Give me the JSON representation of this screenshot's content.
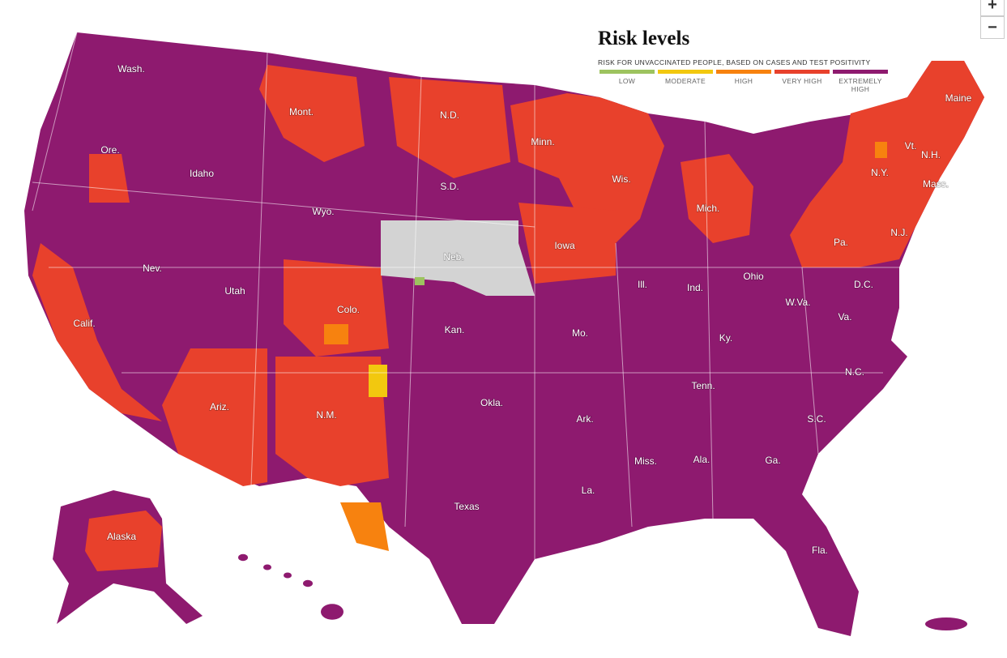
{
  "title": "Risk levels",
  "subtitle": "RISK FOR UNVACCINATED PEOPLE, BASED ON CASES AND TEST POSITIVITY",
  "legend": [
    {
      "label": "LOW",
      "color": "#9dc35f"
    },
    {
      "label": "MODERATE",
      "color": "#f2c80f"
    },
    {
      "label": "HIGH",
      "color": "#f7820f"
    },
    {
      "label": "VERY HIGH",
      "color": "#e8412c"
    },
    {
      "label": "EXTREMELY HIGH",
      "color": "#8e1a6f"
    }
  ],
  "zoom": [
    "+",
    "−"
  ],
  "states": [
    "Wash.",
    "Ore.",
    "Calif.",
    "Nev.",
    "Idaho",
    "Mont.",
    "Wyo.",
    "Utah",
    "Ariz.",
    "Colo.",
    "N.M.",
    "N.D.",
    "S.D.",
    "Neb.",
    "Kan.",
    "Okla.",
    "Texas",
    "Minn.",
    "Iowa",
    "Mo.",
    "Ark.",
    "La.",
    "Wis.",
    "Ill.",
    "Mich.",
    "Ind.",
    "Ohio",
    "Ky.",
    "Tenn.",
    "Miss.",
    "Ala.",
    "Ga.",
    "Fla.",
    "S.C.",
    "N.C.",
    "Va.",
    "W.Va.",
    "Pa.",
    "N.Y.",
    "Vt.",
    "N.H.",
    "Maine",
    "Mass.",
    "N.J.",
    "D.C.",
    "Alaska"
  ]
}
